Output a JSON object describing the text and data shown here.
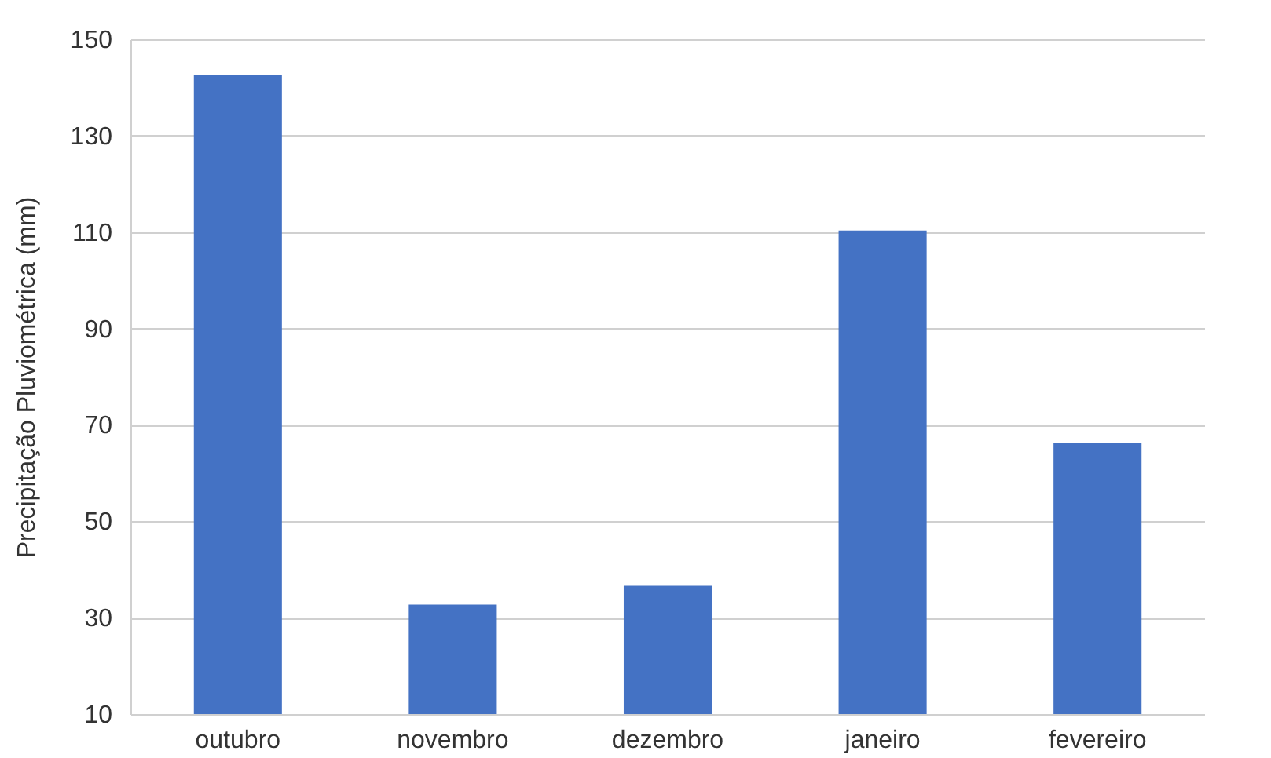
{
  "chart_data": {
    "type": "bar",
    "ylabel": "Precipitação Pluviométrica (mm)",
    "categories": [
      "outubro",
      "novembro",
      "dezembro",
      "janeiro",
      "fevereiro"
    ],
    "values": [
      142.5,
      32.7,
      36.6,
      110.3,
      66.3
    ],
    "color": "#4472c4",
    "ylim": [
      10,
      150
    ],
    "yticks": [
      10,
      30,
      50,
      70,
      90,
      110,
      130,
      150
    ],
    "grid": "y"
  }
}
